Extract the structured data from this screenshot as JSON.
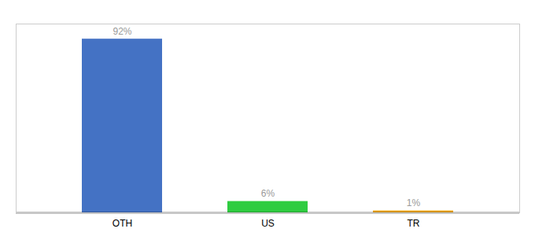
{
  "chart_data": {
    "type": "bar",
    "categories": [
      "OTH",
      "US",
      "TR"
    ],
    "values": [
      92,
      6,
      1
    ],
    "value_labels": [
      "92%",
      "6%",
      "1%"
    ],
    "colors": [
      "#4472c4",
      "#2ecc40",
      "#f0a500"
    ],
    "ylim": [
      0,
      100
    ],
    "data_labels": true,
    "tick_labels": "x"
  }
}
